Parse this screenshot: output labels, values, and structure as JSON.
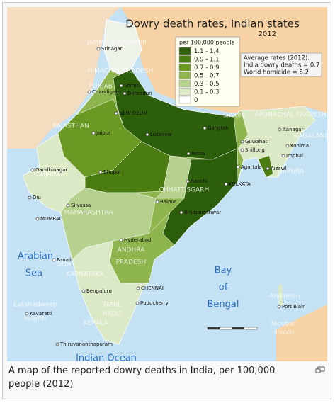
{
  "map": {
    "title": "Dowry death rates, Indian states",
    "year": "2012",
    "legend": {
      "title": "per 100,000 people",
      "items": [
        {
          "label": "1.1 - 1.4",
          "color": "#2d5e0b"
        },
        {
          "label": "0.9 - 1.1",
          "color": "#4a7c12"
        },
        {
          "label": "0.7 - 0.9",
          "color": "#6b9a24"
        },
        {
          "label": "0.5 - 0.7",
          "color": "#8fb64e"
        },
        {
          "label": "0.3 - 0.5",
          "color": "#b6d08d"
        },
        {
          "label": "0.1 - 0.3",
          "color": "#dbe9c6"
        },
        {
          "label": "0",
          "color": "#ffffff"
        }
      ]
    },
    "averages": [
      "Average rates (2012):",
      "India dowry deaths = 0.7",
      "World homicide = 6.2"
    ],
    "seas": [
      "Arabian",
      "Sea",
      "Bay",
      "of",
      "Bengal",
      "Indian Ocean"
    ],
    "regions": [
      "JAMMU & KASHMIR",
      "HIMACHAL PRADESH",
      "PUNJAB",
      "RAJASTHAN",
      "GUJARAT",
      "MAHARASHTRA",
      "CHHATTISGARH",
      "ANDHRA",
      "PRADESH",
      "KARNATAKA",
      "TAMIL",
      "NADU",
      "KERALA",
      "GOA",
      "SIKKIM",
      "ARUNACHAL PRADESH",
      "NAGALAND",
      "TRIPURA",
      "Lakshadweep",
      "Islands",
      "Andaman",
      "Nicobar",
      "Islands"
    ],
    "cities": [
      "Srinagar",
      "Shimla",
      "Chandigarh",
      "Dehradun",
      "NEW DELHI",
      "Jaipur",
      "Lucknow",
      "Patna",
      "Gangtok",
      "Itanagar",
      "Guwahati",
      "Kohima",
      "Shillong",
      "Imphal",
      "Agartala",
      "Aizawl",
      "Gandhinagar",
      "Bhopal",
      "Ranchi",
      "KOLKATA",
      "Raipur",
      "Bhubaneshwar",
      "Diu",
      "Silvassa",
      "MUMBAI",
      "Hyderabad",
      "Panaji",
      "Bengaluru",
      "CHENNAI",
      "Puducherry",
      "Kavaratti",
      "Port Blair",
      "Thiruvananthapuram"
    ]
  },
  "caption": "A map of the reported dowry deaths in India, per 100,000 people (2012)"
}
